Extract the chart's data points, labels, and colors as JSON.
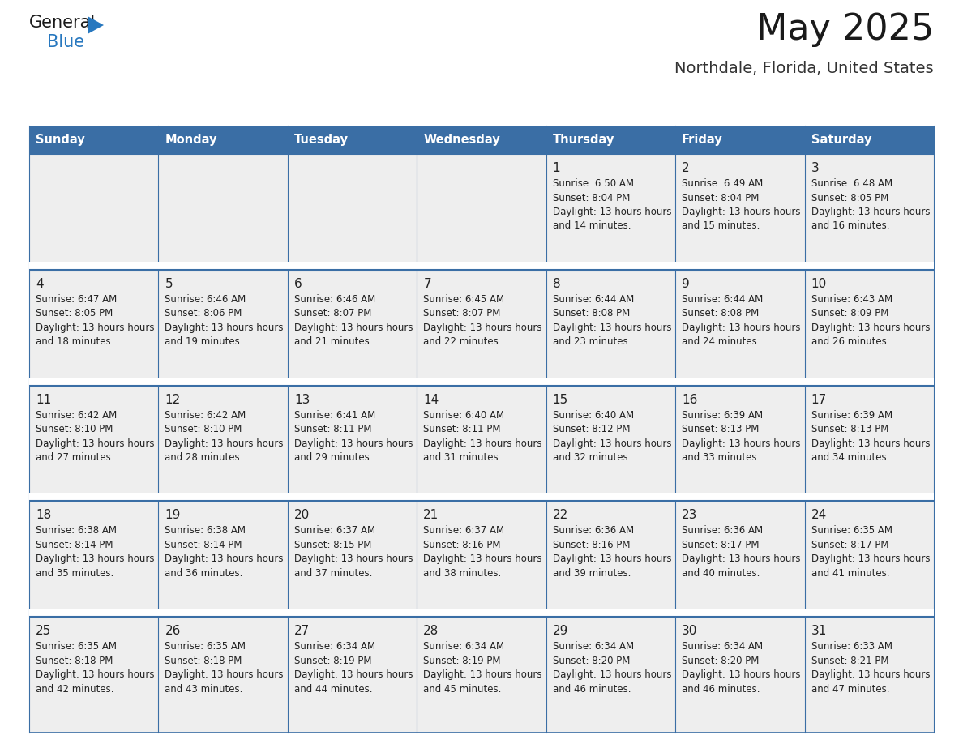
{
  "title": "May 2025",
  "subtitle": "Northdale, Florida, United States",
  "days_of_week": [
    "Sunday",
    "Monday",
    "Tuesday",
    "Wednesday",
    "Thursday",
    "Friday",
    "Saturday"
  ],
  "header_bg": "#3a6ea5",
  "header_text": "#ffffff",
  "cell_bg": "#eeeeee",
  "cell_bg_white": "#ffffff",
  "grid_line_color": "#3a6ea5",
  "text_color": "#222222",
  "title_color": "#1a1a1a",
  "subtitle_color": "#333333",
  "logo_general_color": "#1a1a1a",
  "logo_blue_color": "#2878bf",
  "weeks": [
    [
      {
        "day": null
      },
      {
        "day": null
      },
      {
        "day": null
      },
      {
        "day": null
      },
      {
        "day": 1,
        "sunrise": "6:50 AM",
        "sunset": "8:04 PM",
        "daylight": "13 hours and 14 minutes."
      },
      {
        "day": 2,
        "sunrise": "6:49 AM",
        "sunset": "8:04 PM",
        "daylight": "13 hours and 15 minutes."
      },
      {
        "day": 3,
        "sunrise": "6:48 AM",
        "sunset": "8:05 PM",
        "daylight": "13 hours and 16 minutes."
      }
    ],
    [
      {
        "day": 4,
        "sunrise": "6:47 AM",
        "sunset": "8:05 PM",
        "daylight": "13 hours and 18 minutes."
      },
      {
        "day": 5,
        "sunrise": "6:46 AM",
        "sunset": "8:06 PM",
        "daylight": "13 hours and 19 minutes."
      },
      {
        "day": 6,
        "sunrise": "6:46 AM",
        "sunset": "8:07 PM",
        "daylight": "13 hours and 21 minutes."
      },
      {
        "day": 7,
        "sunrise": "6:45 AM",
        "sunset": "8:07 PM",
        "daylight": "13 hours and 22 minutes."
      },
      {
        "day": 8,
        "sunrise": "6:44 AM",
        "sunset": "8:08 PM",
        "daylight": "13 hours and 23 minutes."
      },
      {
        "day": 9,
        "sunrise": "6:44 AM",
        "sunset": "8:08 PM",
        "daylight": "13 hours and 24 minutes."
      },
      {
        "day": 10,
        "sunrise": "6:43 AM",
        "sunset": "8:09 PM",
        "daylight": "13 hours and 26 minutes."
      }
    ],
    [
      {
        "day": 11,
        "sunrise": "6:42 AM",
        "sunset": "8:10 PM",
        "daylight": "13 hours and 27 minutes."
      },
      {
        "day": 12,
        "sunrise": "6:42 AM",
        "sunset": "8:10 PM",
        "daylight": "13 hours and 28 minutes."
      },
      {
        "day": 13,
        "sunrise": "6:41 AM",
        "sunset": "8:11 PM",
        "daylight": "13 hours and 29 minutes."
      },
      {
        "day": 14,
        "sunrise": "6:40 AM",
        "sunset": "8:11 PM",
        "daylight": "13 hours and 31 minutes."
      },
      {
        "day": 15,
        "sunrise": "6:40 AM",
        "sunset": "8:12 PM",
        "daylight": "13 hours and 32 minutes."
      },
      {
        "day": 16,
        "sunrise": "6:39 AM",
        "sunset": "8:13 PM",
        "daylight": "13 hours and 33 minutes."
      },
      {
        "day": 17,
        "sunrise": "6:39 AM",
        "sunset": "8:13 PM",
        "daylight": "13 hours and 34 minutes."
      }
    ],
    [
      {
        "day": 18,
        "sunrise": "6:38 AM",
        "sunset": "8:14 PM",
        "daylight": "13 hours and 35 minutes."
      },
      {
        "day": 19,
        "sunrise": "6:38 AM",
        "sunset": "8:14 PM",
        "daylight": "13 hours and 36 minutes."
      },
      {
        "day": 20,
        "sunrise": "6:37 AM",
        "sunset": "8:15 PM",
        "daylight": "13 hours and 37 minutes."
      },
      {
        "day": 21,
        "sunrise": "6:37 AM",
        "sunset": "8:16 PM",
        "daylight": "13 hours and 38 minutes."
      },
      {
        "day": 22,
        "sunrise": "6:36 AM",
        "sunset": "8:16 PM",
        "daylight": "13 hours and 39 minutes."
      },
      {
        "day": 23,
        "sunrise": "6:36 AM",
        "sunset": "8:17 PM",
        "daylight": "13 hours and 40 minutes."
      },
      {
        "day": 24,
        "sunrise": "6:35 AM",
        "sunset": "8:17 PM",
        "daylight": "13 hours and 41 minutes."
      }
    ],
    [
      {
        "day": 25,
        "sunrise": "6:35 AM",
        "sunset": "8:18 PM",
        "daylight": "13 hours and 42 minutes."
      },
      {
        "day": 26,
        "sunrise": "6:35 AM",
        "sunset": "8:18 PM",
        "daylight": "13 hours and 43 minutes."
      },
      {
        "day": 27,
        "sunrise": "6:34 AM",
        "sunset": "8:19 PM",
        "daylight": "13 hours and 44 minutes."
      },
      {
        "day": 28,
        "sunrise": "6:34 AM",
        "sunset": "8:19 PM",
        "daylight": "13 hours and 45 minutes."
      },
      {
        "day": 29,
        "sunrise": "6:34 AM",
        "sunset": "8:20 PM",
        "daylight": "13 hours and 46 minutes."
      },
      {
        "day": 30,
        "sunrise": "6:34 AM",
        "sunset": "8:20 PM",
        "daylight": "13 hours and 46 minutes."
      },
      {
        "day": 31,
        "sunrise": "6:33 AM",
        "sunset": "8:21 PM",
        "daylight": "13 hours and 47 minutes."
      }
    ]
  ]
}
